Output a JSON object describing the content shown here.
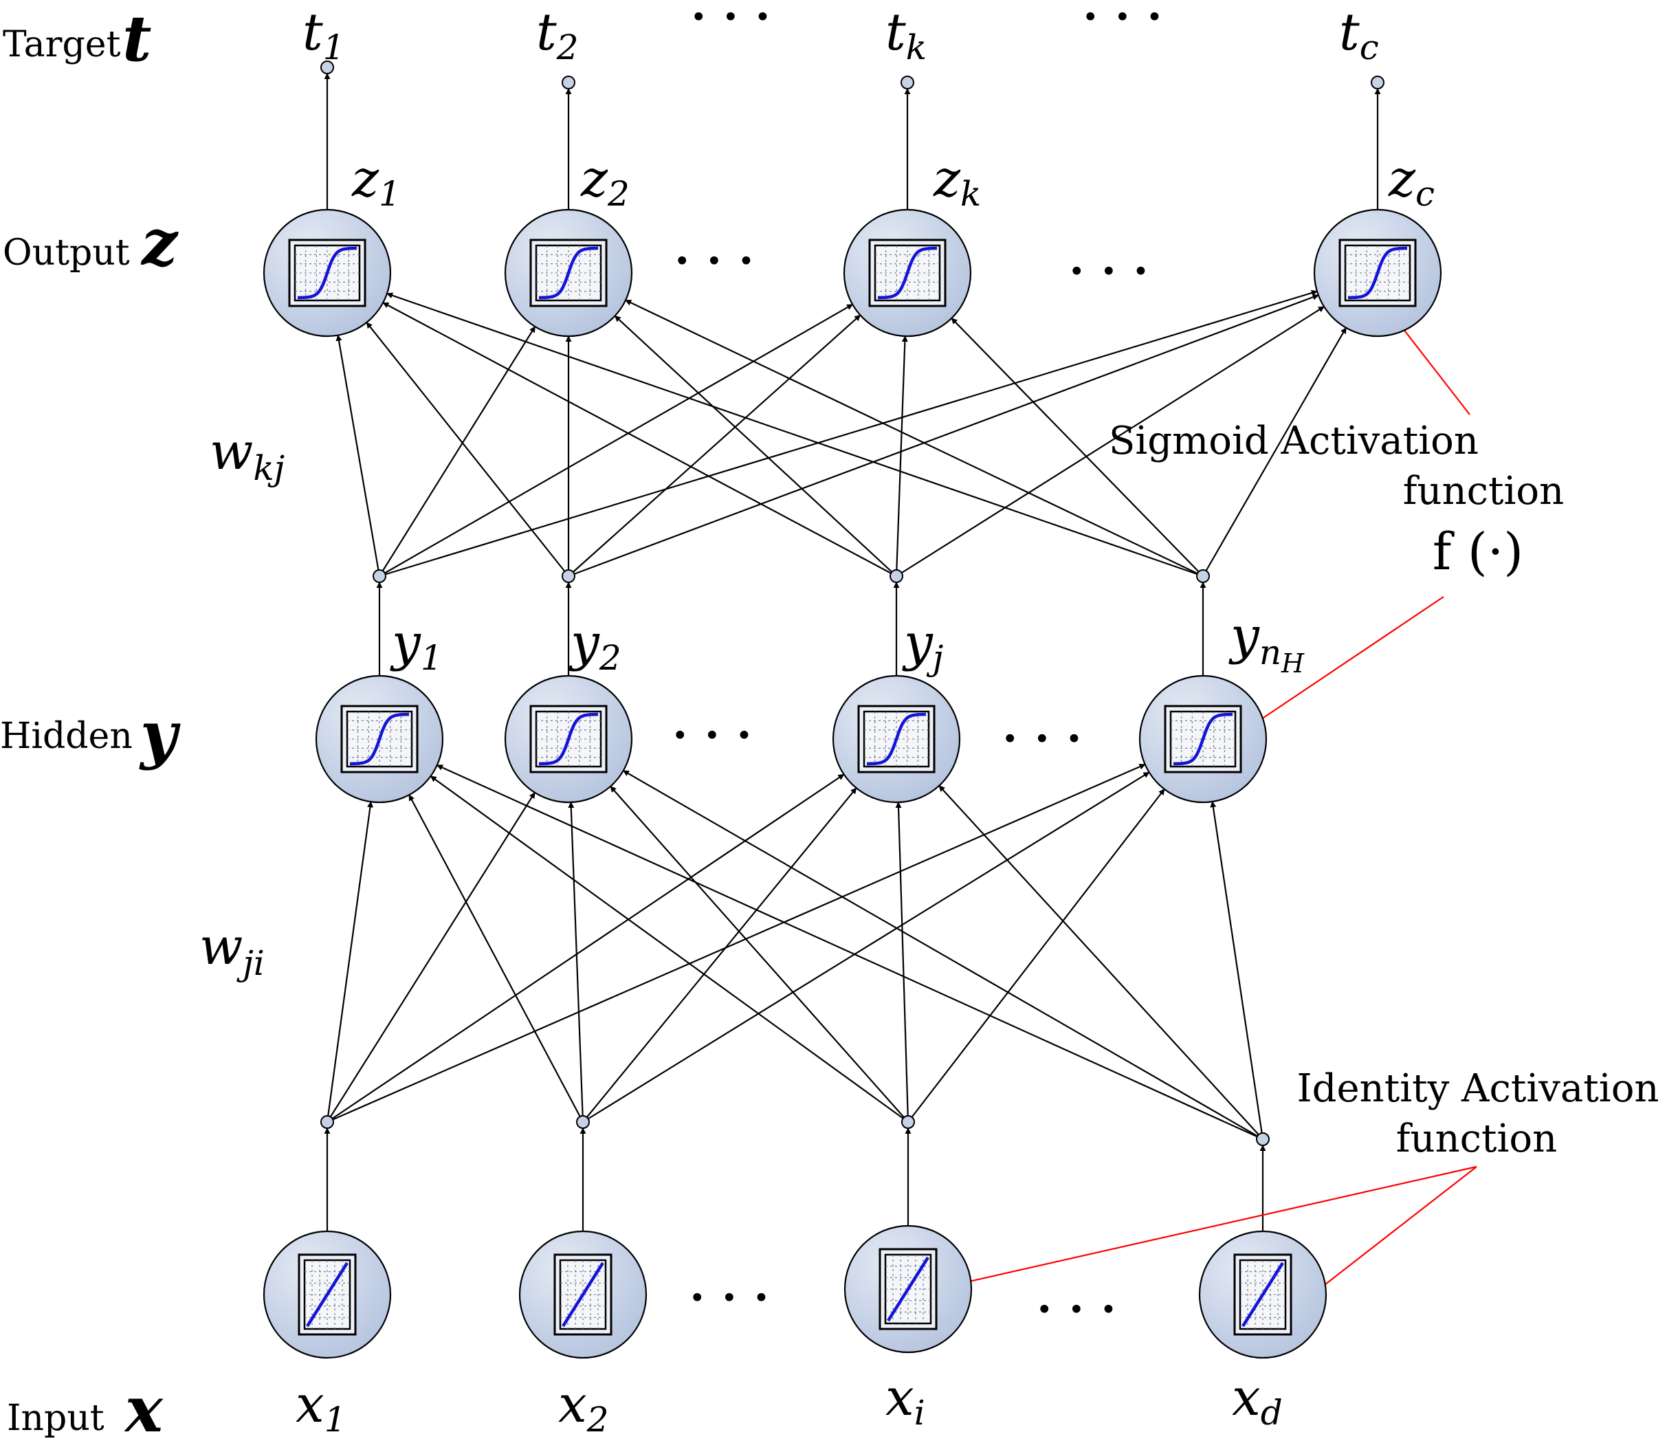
{
  "layers": {
    "target": {
      "label": "Target",
      "symbol": "t"
    },
    "output": {
      "label": "Output",
      "symbol": "z"
    },
    "hidden": {
      "label": "Hidden",
      "symbol": "y"
    },
    "input": {
      "label": "Input",
      "symbol": "x"
    }
  },
  "nodes": {
    "target": [
      {
        "base": "t",
        "sub": "1"
      },
      {
        "base": "t",
        "sub": "2"
      },
      {
        "base": "t",
        "sub": "k"
      },
      {
        "base": "t",
        "sub": "c"
      }
    ],
    "output": [
      {
        "base": "z",
        "sub": "1"
      },
      {
        "base": "z",
        "sub": "2"
      },
      {
        "base": "z",
        "sub": "k"
      },
      {
        "base": "z",
        "sub": "c"
      }
    ],
    "hidden": [
      {
        "base": "y",
        "sub": "1"
      },
      {
        "base": "y",
        "sub": "2"
      },
      {
        "base": "y",
        "sub": "j"
      },
      {
        "base": "y",
        "sub": "n",
        "subsub": "H"
      }
    ],
    "input": [
      {
        "base": "x",
        "sub": "1"
      },
      {
        "base": "x",
        "sub": "2"
      },
      {
        "base": "x",
        "sub": "i"
      },
      {
        "base": "x",
        "sub": "d"
      }
    ]
  },
  "weights": {
    "hidden_output": {
      "base": "w",
      "sub": "kj"
    },
    "input_hidden": {
      "base": "w",
      "sub": "ji"
    }
  },
  "ellipsis": "···",
  "annotations": {
    "sigmoid": {
      "line1": "Sigmoid  Activation",
      "line2": "function",
      "formula": "f (·)"
    },
    "identity": {
      "line1": "Identity  Activation",
      "line2": "function"
    }
  },
  "colors": {
    "node_fill_light": "#e4eaf4",
    "node_fill_dark": "#b3c2dd",
    "curve": "#1414d6",
    "annotation_arrow": "#ff0000"
  }
}
